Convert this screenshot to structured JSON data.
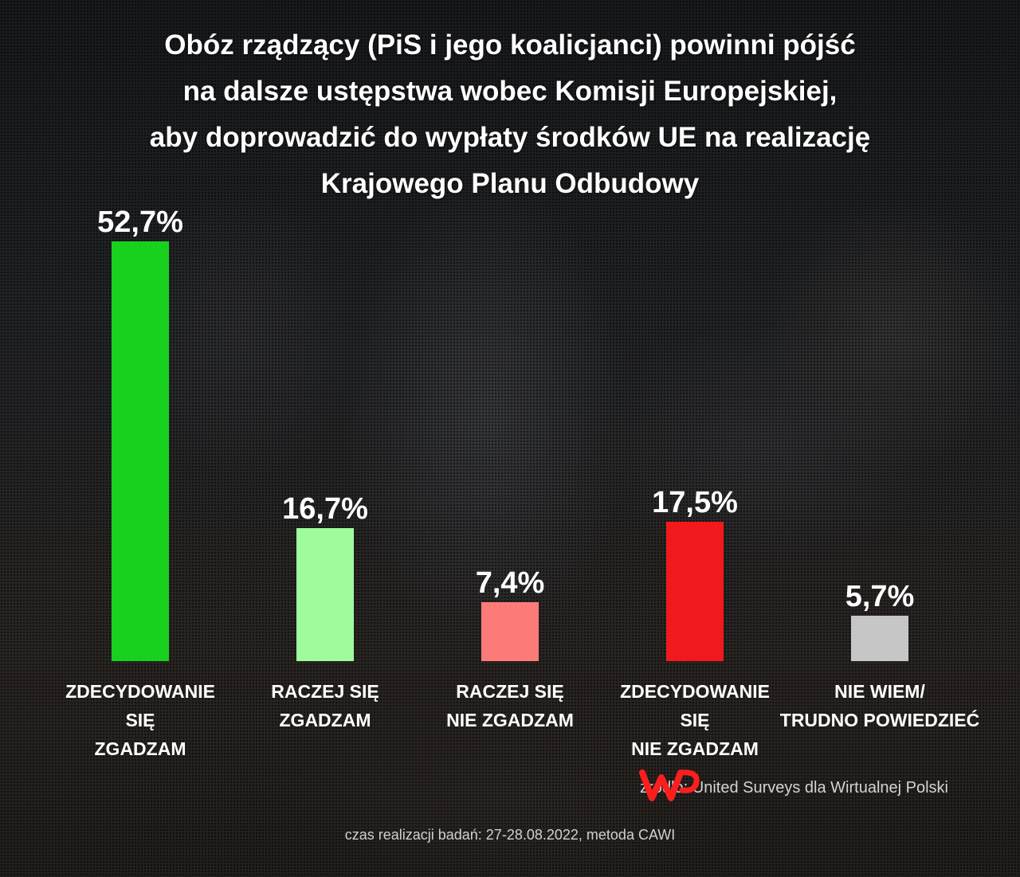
{
  "title_lines": [
    "Obóz rządzący (PiS i jego koalicjanci) powinni pójść",
    "na dalsze ustępstwa wobec Komisji Europejskiej,",
    "aby doprowadzić do wypłaty środków UE na realizację",
    "Krajowego Planu Odbudowy"
  ],
  "chart_data": {
    "type": "bar",
    "title": "Obóz rządzący (PiS i jego koalicjanci) powinni pójść na dalsze ustępstwa wobec Komisji Europejskiej, aby doprowadzić do wypłaty środków UE na realizację Krajowego Planu Odbudowy",
    "unit": "%",
    "ylim": [
      0,
      52.7
    ],
    "grid": false,
    "categories": [
      [
        "ZDECYDOWANIE",
        "SIĘ",
        "ZGADZAM"
      ],
      [
        "RACZEJ SIĘ",
        "ZGADZAM"
      ],
      [
        "RACZEJ SIĘ",
        "NIE ZGADZAM"
      ],
      [
        "ZDECYDOWANIE",
        "SIĘ",
        "NIE ZGADZAM"
      ],
      [
        "NIE WIEM/",
        "TRUDNO POWIEDZIEĆ"
      ]
    ],
    "values": [
      52.7,
      16.7,
      7.4,
      17.5,
      5.7
    ],
    "value_labels": [
      "52,7%",
      "16,7%",
      "7,4%",
      "17,5%",
      "5,7%"
    ],
    "colors": [
      "#18d11e",
      "#9efc9c",
      "#fc7b78",
      "#f2191c",
      "#c6c6c6"
    ]
  },
  "source": "źródło: United Surveys dla Wirtualnej Polski",
  "period": "czas realizacji badań: 27-28.08.2022, metoda CAWI",
  "logo_icon": "wp-logo-icon",
  "logo_color": "#ff1e1e"
}
